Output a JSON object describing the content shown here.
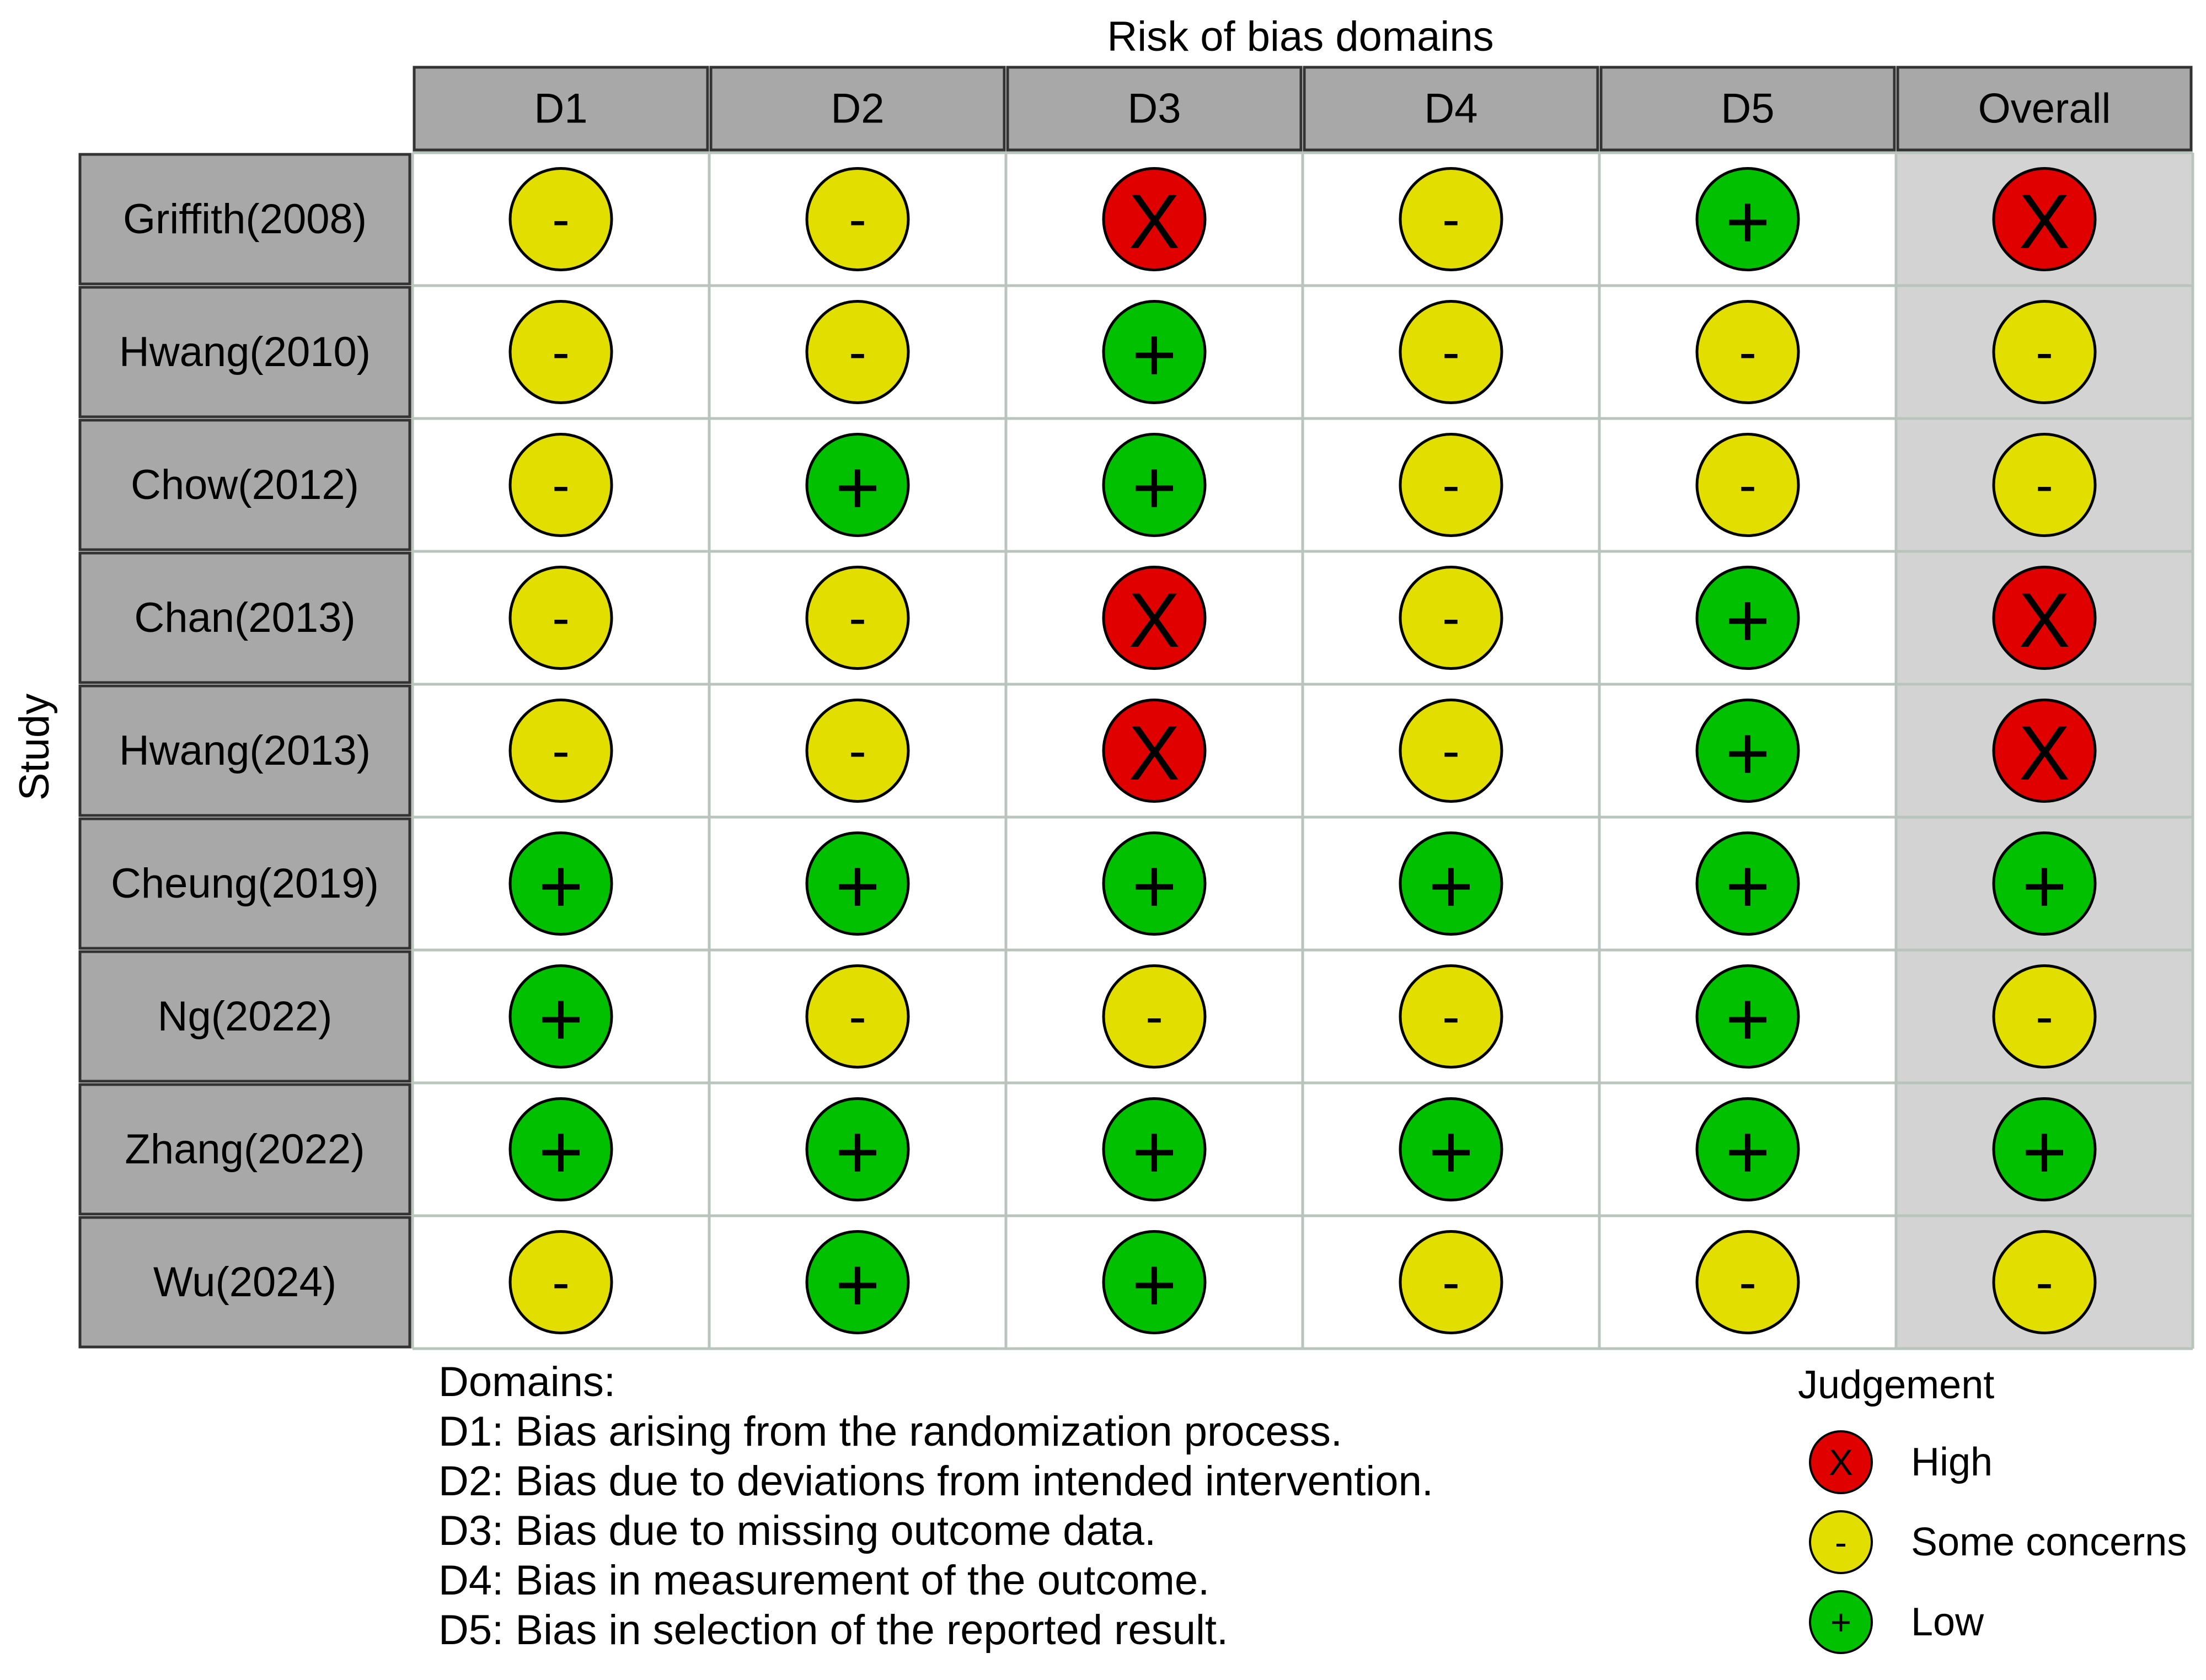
{
  "chart_data": {
    "type": "table",
    "title": "Risk of bias domains",
    "ylabel": "Study",
    "columns": [
      "D1",
      "D2",
      "D3",
      "D4",
      "D5",
      "Overall"
    ],
    "studies": [
      "Griffith(2008)",
      "Hwang(2010)",
      "Chow(2012)",
      "Chan(2013)",
      "Hwang(2013)",
      "Cheung(2019)",
      "Ng(2022)",
      "Zhang(2022)",
      "Wu(2024)"
    ],
    "judgements": [
      [
        "-",
        "-",
        "X",
        "-",
        "+",
        "X"
      ],
      [
        "-",
        "-",
        "+",
        "-",
        "-",
        "-"
      ],
      [
        "-",
        "+",
        "+",
        "-",
        "-",
        "-"
      ],
      [
        "-",
        "-",
        "X",
        "-",
        "+",
        "X"
      ],
      [
        "-",
        "-",
        "X",
        "-",
        "+",
        "X"
      ],
      [
        "+",
        "+",
        "+",
        "+",
        "+",
        "+"
      ],
      [
        "+",
        "-",
        "-",
        "-",
        "+",
        "-"
      ],
      [
        "+",
        "+",
        "+",
        "+",
        "+",
        "+"
      ],
      [
        "-",
        "+",
        "+",
        "-",
        "-",
        "-"
      ]
    ],
    "domains_heading": "Domains:",
    "domain_descriptions": [
      "D1: Bias arising from the randomization process.",
      "D2: Bias due to deviations from intended intervention.",
      "D3: Bias due to missing outcome data.",
      "D4: Bias in measurement of the outcome.",
      "D5: Bias in selection of the reported result."
    ],
    "legend": {
      "title": "Judgement",
      "items": [
        {
          "symbol": "X",
          "label": "High"
        },
        {
          "symbol": "-",
          "label": "Some concerns"
        },
        {
          "symbol": "+",
          "label": "Low"
        }
      ]
    }
  },
  "colors": {
    "high": "#e00000",
    "some": "#e2df00",
    "low": "#00c000",
    "header_fill": "#a8a8a8",
    "overall_fill": "#d3d3d3",
    "grid": "#b8c4bc"
  }
}
